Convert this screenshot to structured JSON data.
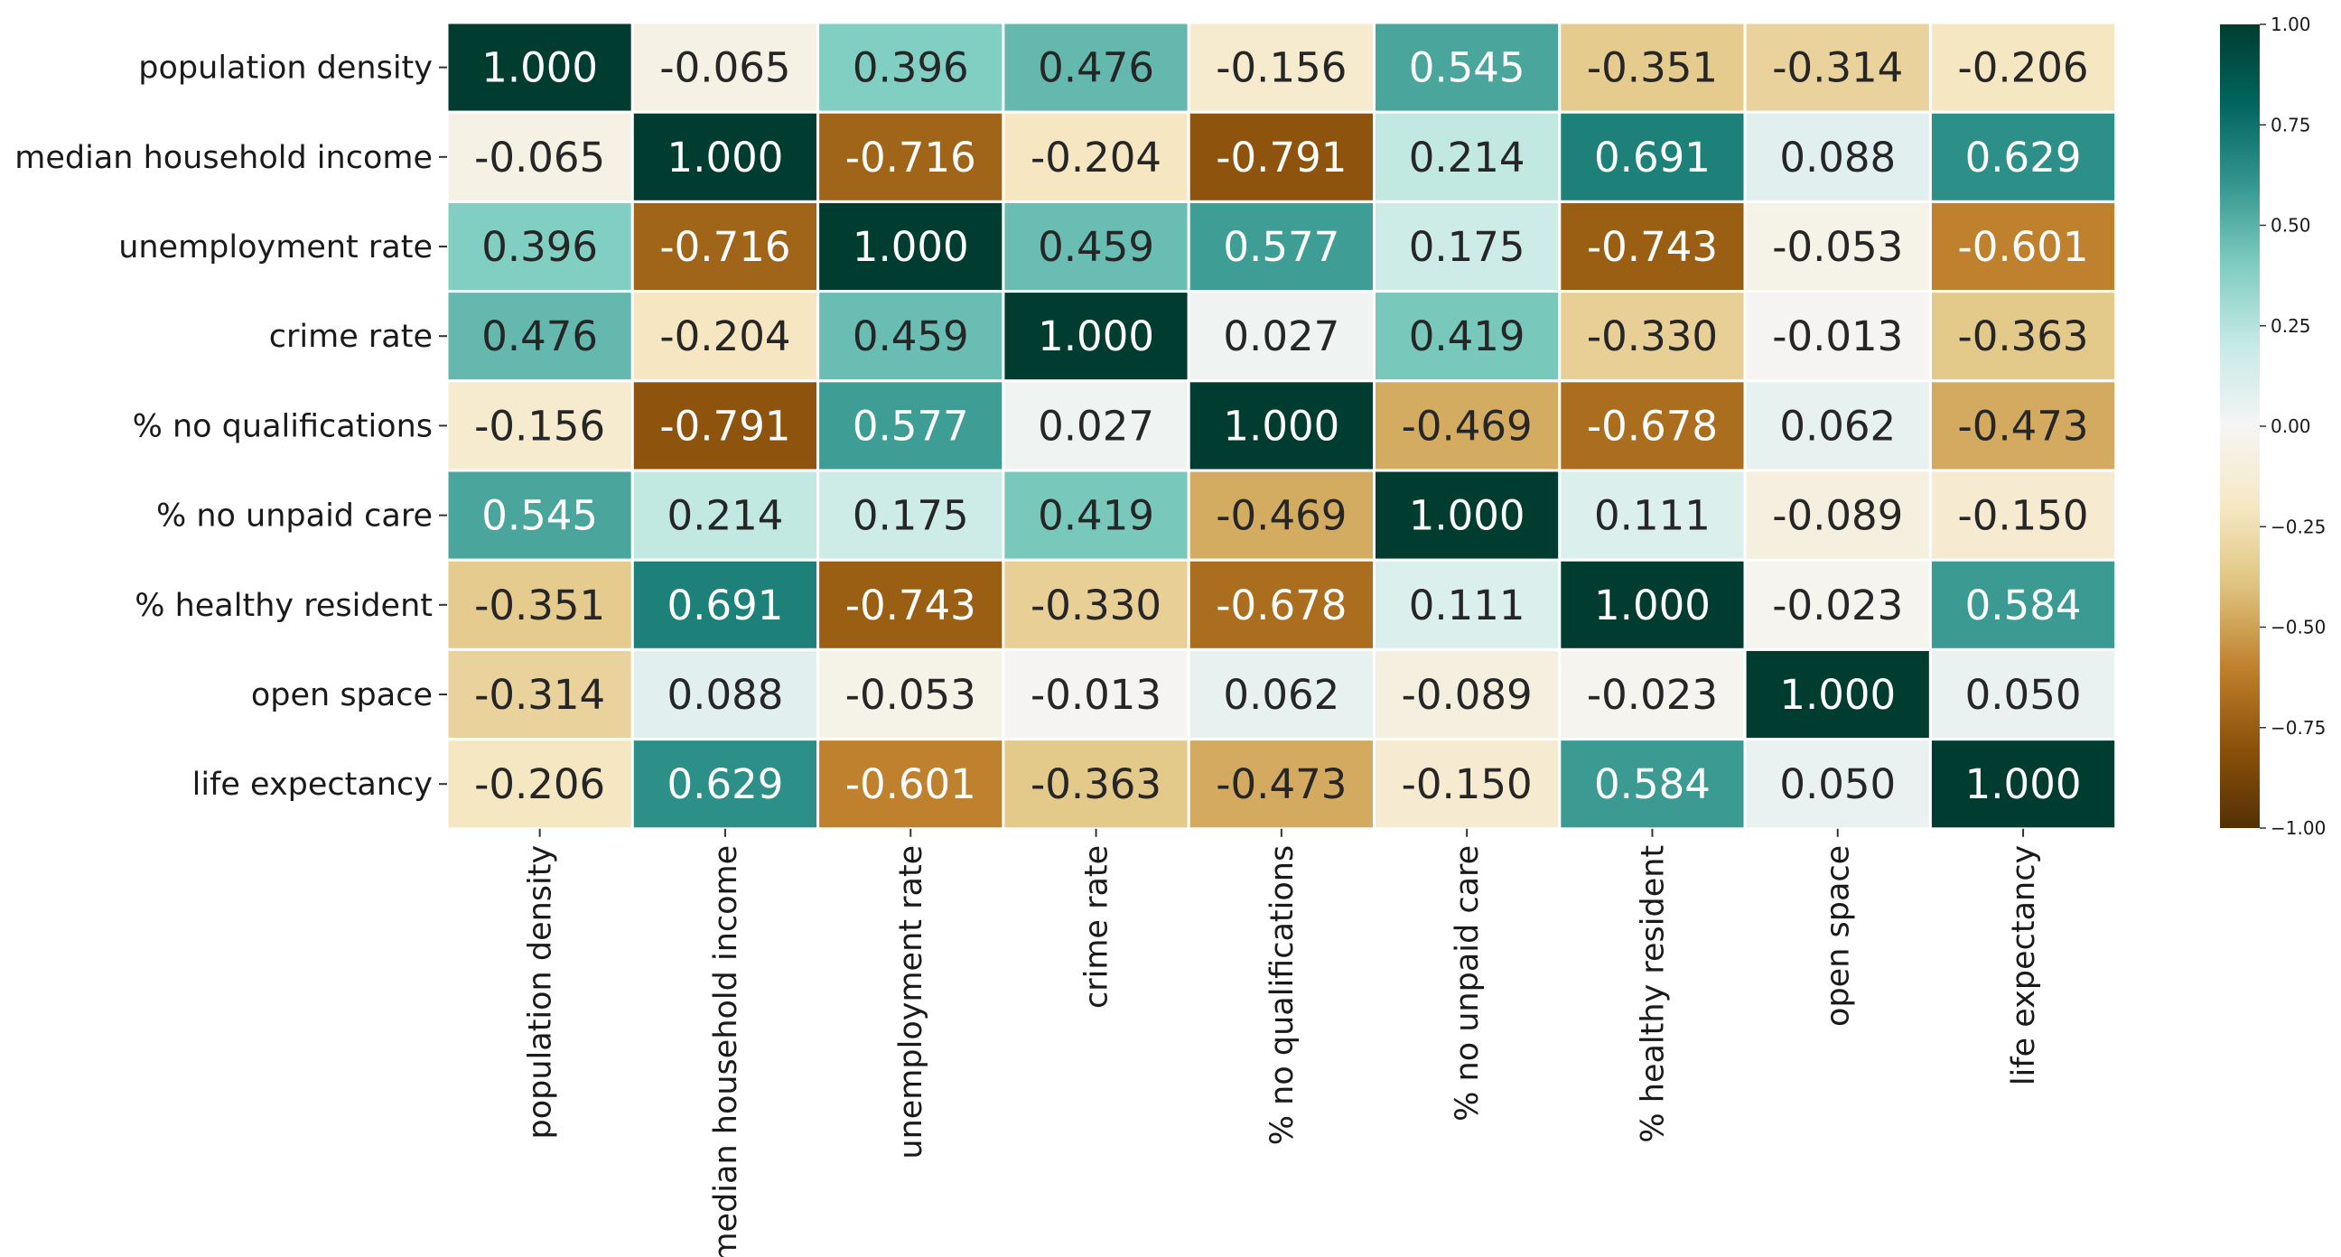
{
  "chart_data": {
    "type": "heatmap",
    "title": "",
    "xlabel": "",
    "ylabel": "",
    "row_labels": [
      "population density",
      "median household income",
      "unemployment rate",
      "crime rate",
      "% no qualifications",
      "% no unpaid care",
      "% healthy resident",
      "open space",
      "life expectancy"
    ],
    "col_labels": [
      "population density",
      "median household income",
      "unemployment rate",
      "crime rate",
      "% no qualifications",
      "% no unpaid care",
      "% healthy resident",
      "open space",
      "life expectancy"
    ],
    "values": [
      [
        1.0,
        -0.065,
        0.396,
        0.476,
        -0.156,
        0.545,
        -0.351,
        -0.314,
        -0.206
      ],
      [
        -0.065,
        1.0,
        -0.716,
        -0.204,
        -0.791,
        0.214,
        0.691,
        0.088,
        0.629
      ],
      [
        0.396,
        -0.716,
        1.0,
        0.459,
        0.577,
        0.175,
        -0.743,
        -0.053,
        -0.601
      ],
      [
        0.476,
        -0.204,
        0.459,
        1.0,
        0.027,
        0.419,
        -0.33,
        -0.013,
        -0.363
      ],
      [
        -0.156,
        -0.791,
        0.577,
        0.027,
        1.0,
        -0.469,
        -0.678,
        0.062,
        -0.473
      ],
      [
        0.545,
        0.214,
        0.175,
        0.419,
        -0.469,
        1.0,
        0.111,
        -0.089,
        -0.15
      ],
      [
        -0.351,
        0.691,
        -0.743,
        -0.33,
        -0.678,
        0.111,
        1.0,
        -0.023,
        0.584
      ],
      [
        -0.314,
        0.088,
        -0.053,
        -0.013,
        0.062,
        -0.089,
        -0.023,
        1.0,
        0.05
      ],
      [
        -0.206,
        0.629,
        -0.601,
        -0.363,
        -0.473,
        -0.15,
        0.584,
        0.05,
        1.0
      ]
    ],
    "value_format": "3 decimals",
    "colormap": "BrBG",
    "vmin": -1.0,
    "vmax": 1.0,
    "colorbar": {
      "position": "right",
      "ticks": [
        1.0,
        0.75,
        0.5,
        0.25,
        0.0,
        -0.25,
        -0.5,
        -0.75,
        -1.0
      ],
      "tick_labels": [
        "1.00",
        "0.75",
        "0.50",
        "0.25",
        "0.00",
        "−0.25",
        "−0.50",
        "−0.75",
        "−1.00"
      ]
    },
    "grid": "white cell separators",
    "colors": {
      "cell_border": "#ffffff",
      "text_light": "#ffffff",
      "text_dark": "#262626"
    }
  }
}
